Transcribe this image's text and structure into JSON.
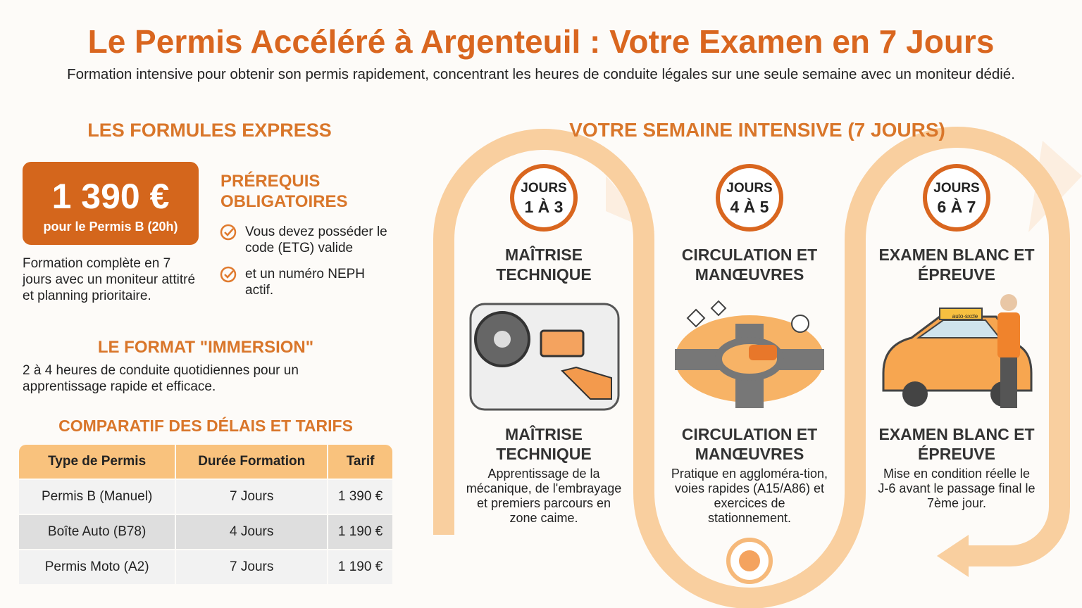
{
  "header": {
    "title": "Le Permis Accéléré à Argenteuil : Votre Examen en 7 Jours",
    "subtitle": "Formation intensive pour obtenir son permis rapidement, concentrant les heures de conduite légales sur une seule semaine avec un moniteur dédié."
  },
  "formules": {
    "heading": "LES FORMULES EXPRESS",
    "price": "1 390 €",
    "price_note": "pour le Permis B (20h)",
    "description": "Formation complète en 7 jours avec un moniteur attitré et planning prioritaire.",
    "prereq_heading": "PRÉREQUIS OBLIGATOIRES",
    "prereqs": [
      "Vous devez posséder le code (ETG) valide",
      "et un numéro NEPH actif."
    ]
  },
  "immersion": {
    "heading": "LE FORMAT \"IMMERSION\"",
    "text": "2 à 4 heures de conduite quotidiennes pour un apprentissage rapide et efficace."
  },
  "comparatif": {
    "heading": "COMPARATIF DES DÉLAIS ET TARIFS",
    "columns": [
      "Type de Permis",
      "Durée Formation",
      "Tarif"
    ],
    "rows": [
      [
        "Permis B (Manuel)",
        "7 Jours",
        "1 390 €"
      ],
      [
        "Boîte Auto (B78)",
        "4 Jours",
        "1 190 €"
      ],
      [
        "Permis Moto (A2)",
        "7 Jours",
        "1 190 €"
      ]
    ]
  },
  "semaine": {
    "heading": "VOTRE SEMAINE INTENSIVE (7 JOURS)",
    "car_sign": "auto-sxcle",
    "steps": [
      {
        "badge_top": "JOURS",
        "badge_days": "1 À 3",
        "title": "MAÎTRISE TECHNIQUE",
        "caption_title": "MAÎTRISE TECHNIQUE",
        "description": "Apprentissage de la mécanique, de l'embrayage et premiers parcours en zone caime."
      },
      {
        "badge_top": "JOURS",
        "badge_days": "4 À 5",
        "title": "CIRCULATION ET MANŒUVRES",
        "caption_title": "CIRCULATION ET MANŒUVRES",
        "description": "Pratique en aggloméra-tion, voies rapides (A15/A86) et exercices de stationnement."
      },
      {
        "badge_top": "JOURS",
        "badge_days": "6 À 7",
        "title": "EXAMEN BLANC ET ÉPREUVE",
        "caption_title": "EXAMEN BLANC ET ÉPREUVE",
        "description": "Mise en condition réelle le J-6 avant le passage final le 7ème jour."
      }
    ]
  }
}
